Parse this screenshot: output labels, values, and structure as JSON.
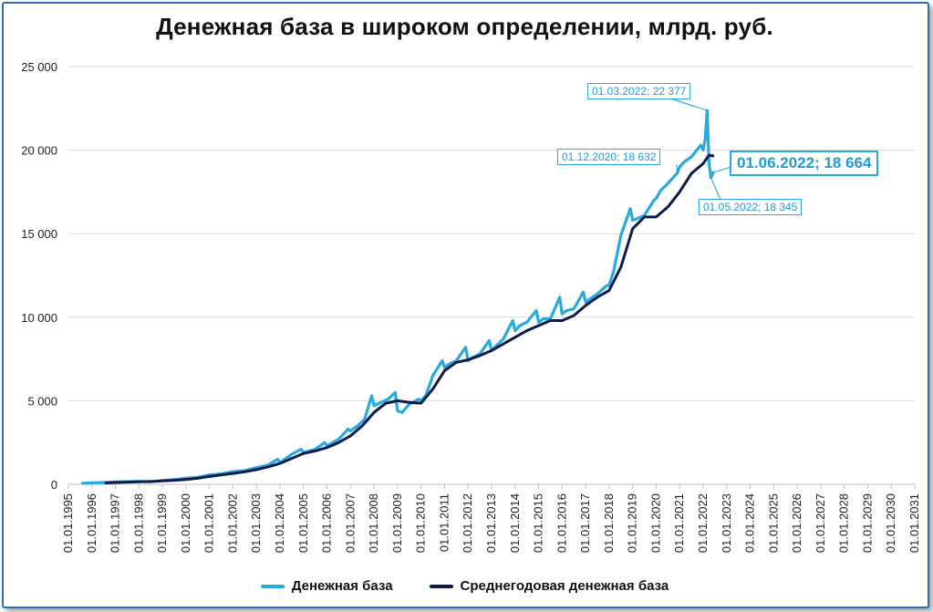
{
  "title": "Денежная база в широком определении, млрд. руб.",
  "colors": {
    "series1": "#29a9e0",
    "series2": "#0d1b4a",
    "grid": "#d9d9d9",
    "annotation": "#1f9bd6"
  },
  "legend": [
    {
      "label": "Денежная база",
      "color": "#29a9e0"
    },
    {
      "label": "Среднегодовая денежная база",
      "color": "#0d1b4a"
    }
  ],
  "annotations": {
    "peak": "01.03.2022;  22 377",
    "dec2020": "01.12.2020;  18 632",
    "jun2022": "01.06.2022;  18 664",
    "may2022": "01.05.2022;  18 345"
  },
  "chart_data": {
    "type": "line",
    "title": "Денежная база в широком определении, млрд. руб.",
    "ylim": [
      0,
      25000
    ],
    "yticks": [
      0,
      5000,
      10000,
      15000,
      20000,
      25000
    ],
    "ytick_labels": [
      "0",
      "5 000",
      "10 000",
      "15 000",
      "20 000",
      "25 000"
    ],
    "xlim": [
      1995,
      2031
    ],
    "xtick_labels": [
      "01.01.1995",
      "01.01.1996",
      "01.01.1997",
      "01.01.1998",
      "01.01.1999",
      "01.01.2000",
      "01.01.2001",
      "01.01.2002",
      "01.01.2003",
      "01.01.2004",
      "01.01.2005",
      "01.01.2006",
      "01.01.2007",
      "01.01.2008",
      "01.01.2009",
      "01.01.2010",
      "01.01.2011",
      "01.01.2012",
      "01.01.2013",
      "01.01.2014",
      "01.01.2015",
      "01.01.2016",
      "01.01.2017",
      "01.01.2018",
      "01.01.2019",
      "01.01.2020",
      "01.01.2021",
      "01.01.2022",
      "01.01.2023",
      "01.01.2024",
      "01.01.2025",
      "01.01.2026",
      "01.01.2027",
      "01.01.2028",
      "01.01.2029",
      "01.01.2030",
      "01.01.2031"
    ],
    "grid": true,
    "legend_position": "bottom",
    "series": [
      {
        "name": "Денежная база",
        "x": [
          1995.6,
          1996.0,
          1996.5,
          1997.0,
          1997.5,
          1998.0,
          1998.5,
          1999.0,
          1999.5,
          2000.0,
          2000.5,
          2001.0,
          2001.5,
          2002.0,
          2002.5,
          2003.0,
          2003.5,
          2003.9,
          2004.0,
          2004.5,
          2004.9,
          2005.0,
          2005.5,
          2005.9,
          2006.0,
          2006.5,
          2006.9,
          2007.0,
          2007.3,
          2007.6,
          2007.9,
          2008.0,
          2008.3,
          2008.6,
          2008.9,
          2009.0,
          2009.2,
          2009.5,
          2009.9,
          2010.0,
          2010.2,
          2010.5,
          2010.9,
          2011.0,
          2011.2,
          2011.5,
          2011.9,
          2012.0,
          2012.2,
          2012.5,
          2012.9,
          2013.0,
          2013.2,
          2013.5,
          2013.9,
          2014.0,
          2014.2,
          2014.5,
          2014.9,
          2015.0,
          2015.2,
          2015.5,
          2015.9,
          2016.0,
          2016.2,
          2016.5,
          2016.9,
          2017.0,
          2017.2,
          2017.5,
          2017.9,
          2018.0,
          2018.2,
          2018.5,
          2018.9,
          2019.0,
          2019.2,
          2019.5,
          2019.9,
          2020.0,
          2020.2,
          2020.5,
          2020.9,
          2021.0,
          2021.2,
          2021.5,
          2021.9,
          2022.0,
          2022.08,
          2022.17,
          2022.25,
          2022.33,
          2022.42
        ],
        "y": [
          60,
          90,
          110,
          140,
          160,
          180,
          150,
          230,
          280,
          360,
          420,
          560,
          620,
          760,
          820,
          1000,
          1150,
          1500,
          1300,
          1800,
          2100,
          1900,
          2100,
          2500,
          2300,
          2700,
          3300,
          3200,
          3500,
          3900,
          5300,
          4700,
          4900,
          5100,
          5500,
          4400,
          4300,
          4800,
          5100,
          5000,
          5300,
          6500,
          7400,
          7000,
          7200,
          7400,
          8200,
          7400,
          7600,
          7800,
          8600,
          8000,
          8300,
          8700,
          9800,
          9200,
          9500,
          9700,
          10400,
          9700,
          9900,
          9900,
          11200,
          10200,
          10400,
          10500,
          11500,
          10900,
          11100,
          11400,
          11900,
          11900,
          12800,
          14900,
          16500,
          15800,
          15900,
          16100,
          17000,
          17100,
          17600,
          18000,
          18632,
          19000,
          19300,
          19600,
          20300,
          20000,
          20600,
          22377,
          19200,
          18345,
          18664
        ]
      },
      {
        "name": "Среднегодовая денежная база",
        "x": [
          1996.6,
          1997.0,
          1997.5,
          1998.0,
          1998.5,
          1999.0,
          1999.5,
          2000.0,
          2000.5,
          2001.0,
          2001.5,
          2002.0,
          2002.5,
          2003.0,
          2003.5,
          2004.0,
          2004.5,
          2005.0,
          2005.5,
          2006.0,
          2006.5,
          2007.0,
          2007.5,
          2008.0,
          2008.5,
          2009.0,
          2009.5,
          2010.0,
          2010.5,
          2011.0,
          2011.5,
          2012.0,
          2012.5,
          2013.0,
          2013.5,
          2014.0,
          2014.5,
          2015.0,
          2015.5,
          2016.0,
          2016.5,
          2017.0,
          2017.5,
          2018.0,
          2018.5,
          2019.0,
          2019.5,
          2020.0,
          2020.5,
          2021.0,
          2021.5,
          2022.0,
          2022.25,
          2022.42
        ],
        "y": [
          80,
          110,
          130,
          150,
          170,
          200,
          240,
          290,
          360,
          470,
          560,
          650,
          750,
          880,
          1050,
          1250,
          1550,
          1850,
          2000,
          2200,
          2500,
          2900,
          3500,
          4300,
          4850,
          5000,
          4900,
          4850,
          5700,
          6800,
          7300,
          7450,
          7700,
          8000,
          8400,
          8800,
          9200,
          9500,
          9800,
          9800,
          10100,
          10700,
          11200,
          11600,
          13000,
          15300,
          16000,
          16000,
          16600,
          17500,
          18600,
          19200,
          19700,
          19650
        ]
      }
    ]
  }
}
